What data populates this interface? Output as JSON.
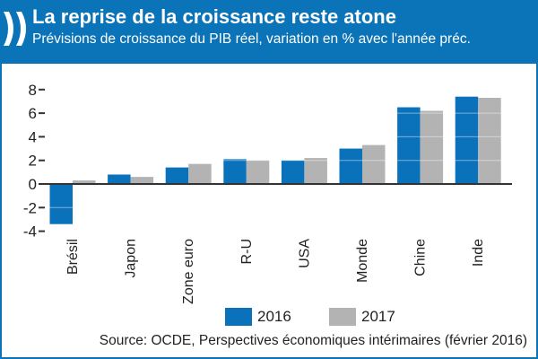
{
  "header": {
    "logo": "oecd-chevrons-logo",
    "title": "La reprise de la croissance reste atone",
    "subtitle": "Prévisions de croissance du PIB réel, variation en % avec l'année préc."
  },
  "colors": {
    "header_blue": "#0b74b8",
    "series_2016": "#0a72bb",
    "series_2017": "#b3b3b3"
  },
  "chart_data": {
    "type": "bar",
    "title": "La reprise de la croissance reste atone",
    "subtitle": "Prévisions de croissance du PIB réel, variation en % avec l'année préc.",
    "xlabel": "",
    "ylabel": "",
    "categories": [
      "Brésil",
      "Japon",
      "Zone euro",
      "R-U",
      "USA",
      "Monde",
      "Chine",
      "Inde"
    ],
    "series": [
      {
        "name": "2016",
        "values": [
          -3.4,
          0.8,
          1.4,
          2.1,
          2.0,
          3.0,
          6.5,
          7.4
        ]
      },
      {
        "name": "2017",
        "values": [
          0.3,
          0.6,
          1.7,
          2.0,
          2.2,
          3.3,
          6.2,
          7.3
        ]
      }
    ],
    "ylim": [
      -4,
      8
    ],
    "yticks": [
      8,
      6,
      4,
      2,
      0,
      -2,
      -4
    ],
    "ytick_labels": [
      "8",
      "6",
      "4",
      "2",
      "0",
      "-2",
      "-4"
    ],
    "grid": "white lines over bars at y ticks",
    "legend": [
      "2016",
      "2017"
    ],
    "legend_position": "bottom-center",
    "source": "Source: OCDE, Perspectives économiques intérimaires (février 2016)"
  },
  "legend": {
    "items": [
      {
        "label": "2016"
      },
      {
        "label": "2017"
      }
    ]
  },
  "footer": {
    "source": "Source: OCDE, Perspectives économiques intérimaires (février 2016)"
  }
}
